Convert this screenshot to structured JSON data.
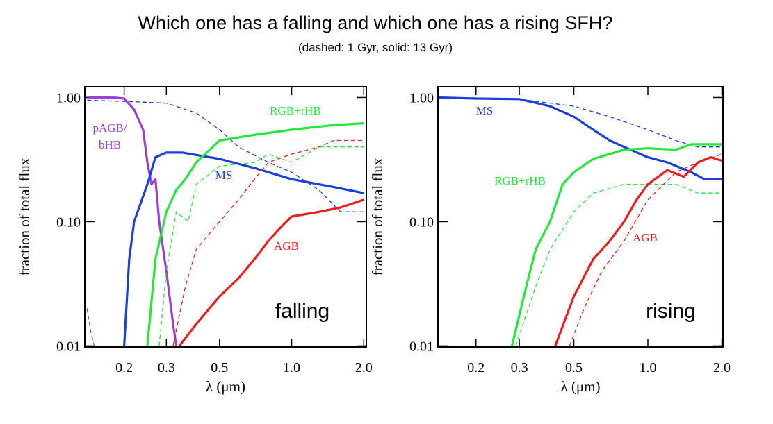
{
  "title": "Which one has a falling and which one has a rising SFH?",
  "subtitle": "(dashed: 1 Gyr, solid: 13 Gyr)",
  "chart_data": [
    {
      "type": "line",
      "label": "falling",
      "xlabel": "λ (μm)",
      "ylabel": "fraction of total flux",
      "xscale": "log",
      "yscale": "log",
      "xlim": [
        0.137,
        2.05
      ],
      "ylim": [
        0.0098,
        1.22
      ],
      "xticks": [
        0.2,
        0.3,
        0.5,
        {
          "value": 1,
          "label": "1.0"
        },
        {
          "value": 2,
          "label": "2.0"
        }
      ],
      "yticks": [
        {
          "value": 0.01,
          "label": "0.01"
        },
        {
          "value": 0.1,
          "label": "0.10"
        },
        {
          "value": 1,
          "label": "1.00"
        }
      ],
      "series": [
        {
          "name": "pAGB/ bHB",
          "color": "#9b3fd6",
          "dashed": false,
          "x": [
            0.14,
            0.18,
            0.2,
            0.22,
            0.24,
            0.25,
            0.26,
            0.27,
            0.28,
            0.3,
            0.32,
            0.33
          ],
          "values": [
            1.0,
            1.0,
            0.98,
            0.8,
            0.55,
            0.3,
            0.2,
            0.22,
            0.1,
            0.04,
            0.015,
            0.01
          ]
        },
        {
          "color": "#9b3fd6",
          "dashed": true,
          "x": [
            0.14,
            0.145,
            0.15
          ],
          "values": [
            0.02,
            0.013,
            0.01
          ]
        },
        {
          "name": "MS",
          "color": "#1c3fd6",
          "dashed": false,
          "x": [
            0.2,
            0.21,
            0.22,
            0.25,
            0.27,
            0.3,
            0.35,
            0.5,
            0.7,
            1.0,
            1.5,
            2.0
          ],
          "values": [
            0.01,
            0.05,
            0.1,
            0.2,
            0.33,
            0.36,
            0.36,
            0.32,
            0.27,
            0.22,
            0.19,
            0.17
          ]
        },
        {
          "color": "#1c3fd6",
          "dashed": true,
          "x": [
            0.14,
            0.2,
            0.3,
            0.4,
            0.5,
            0.6,
            0.8,
            1.0,
            1.3,
            1.6,
            2.0
          ],
          "values": [
            0.95,
            0.93,
            0.9,
            0.75,
            0.55,
            0.4,
            0.3,
            0.25,
            0.18,
            0.12,
            0.12
          ]
        },
        {
          "name": "RGB+rHB",
          "color": "#22e83a",
          "dashed": false,
          "x": [
            0.25,
            0.27,
            0.3,
            0.33,
            0.36,
            0.4,
            0.5,
            0.7,
            1.0,
            1.5,
            2.0
          ],
          "values": [
            0.01,
            0.05,
            0.12,
            0.18,
            0.22,
            0.3,
            0.45,
            0.5,
            0.55,
            0.6,
            0.62
          ]
        },
        {
          "color": "#22e83a",
          "dashed": true,
          "x": [
            0.28,
            0.3,
            0.33,
            0.37,
            0.4,
            0.5,
            0.7,
            0.8,
            1.0,
            1.3,
            1.6,
            2.0
          ],
          "values": [
            0.01,
            0.04,
            0.12,
            0.1,
            0.2,
            0.28,
            0.3,
            0.35,
            0.3,
            0.4,
            0.4,
            0.4
          ]
        },
        {
          "name": "AGB",
          "color": "#ee1c1c",
          "dashed": false,
          "x": [
            0.34,
            0.4,
            0.5,
            0.6,
            0.7,
            0.8,
            0.9,
            1.0,
            1.3,
            1.6,
            2.0
          ],
          "values": [
            0.01,
            0.015,
            0.025,
            0.035,
            0.05,
            0.07,
            0.09,
            0.11,
            0.12,
            0.13,
            0.15
          ]
        },
        {
          "color": "#ee1c1c",
          "dashed": true,
          "x": [
            0.32,
            0.36,
            0.4,
            0.5,
            0.6,
            0.7,
            0.8,
            1.0,
            1.3,
            1.5,
            2.0
          ],
          "values": [
            0.01,
            0.03,
            0.06,
            0.1,
            0.15,
            0.22,
            0.3,
            0.35,
            0.4,
            0.45,
            0.45
          ]
        }
      ]
    },
    {
      "type": "line",
      "label": "rising",
      "xlabel": "λ (μm)",
      "ylabel": "fraction of total flux",
      "xscale": "log",
      "yscale": "log",
      "xlim": [
        0.14,
        2.02
      ],
      "ylim": [
        0.0098,
        1.22
      ],
      "xticks": [
        0.2,
        0.3,
        0.5,
        {
          "value": 1,
          "label": "1.0"
        },
        {
          "value": 2,
          "label": "2.0"
        }
      ],
      "yticks": [
        {
          "value": 0.01,
          "label": "0.01"
        },
        {
          "value": 0.1,
          "label": "0.10"
        },
        {
          "value": 1,
          "label": "1.00"
        }
      ],
      "series": [
        {
          "name": "MS",
          "color": "#1c3fd6",
          "dashed": false,
          "x": [
            0.14,
            0.2,
            0.3,
            0.4,
            0.5,
            0.6,
            0.7,
            0.8,
            1.0,
            1.2,
            1.5,
            1.7,
            2.0
          ],
          "values": [
            1.0,
            0.98,
            0.97,
            0.85,
            0.7,
            0.55,
            0.45,
            0.4,
            0.33,
            0.3,
            0.25,
            0.22,
            0.22
          ]
        },
        {
          "color": "#1c3fd6",
          "dashed": true,
          "x": [
            0.14,
            0.3,
            0.5,
            0.7,
            1.0,
            1.3,
            1.6,
            2.0
          ],
          "values": [
            1.0,
            0.97,
            0.85,
            0.7,
            0.55,
            0.45,
            0.4,
            0.4
          ]
        },
        {
          "name": "RGB+rHB",
          "color": "#22e83a",
          "dashed": false,
          "x": [
            0.28,
            0.32,
            0.35,
            0.4,
            0.45,
            0.5,
            0.6,
            0.8,
            1.0,
            1.3,
            1.5,
            2.0
          ],
          "values": [
            0.01,
            0.03,
            0.06,
            0.1,
            0.2,
            0.25,
            0.32,
            0.38,
            0.39,
            0.38,
            0.42,
            0.42
          ]
        },
        {
          "color": "#22e83a",
          "dashed": true,
          "x": [
            0.29,
            0.35,
            0.4,
            0.5,
            0.6,
            0.8,
            1.0,
            1.3,
            1.6,
            2.0
          ],
          "values": [
            0.01,
            0.03,
            0.06,
            0.12,
            0.17,
            0.2,
            0.2,
            0.2,
            0.17,
            0.17
          ]
        },
        {
          "name": "AGB",
          "color": "#ee1c1c",
          "dashed": false,
          "x": [
            0.42,
            0.5,
            0.6,
            0.7,
            0.8,
            0.9,
            1.0,
            1.2,
            1.4,
            1.6,
            1.8,
            2.0
          ],
          "values": [
            0.01,
            0.025,
            0.05,
            0.07,
            0.1,
            0.15,
            0.2,
            0.26,
            0.23,
            0.3,
            0.33,
            0.31
          ]
        },
        {
          "color": "#ee1c1c",
          "dashed": true,
          "x": [
            0.48,
            0.55,
            0.65,
            0.8,
            1.0,
            1.3,
            1.6,
            2.0
          ],
          "values": [
            0.01,
            0.02,
            0.04,
            0.07,
            0.15,
            0.25,
            0.3,
            0.35
          ]
        }
      ]
    }
  ]
}
